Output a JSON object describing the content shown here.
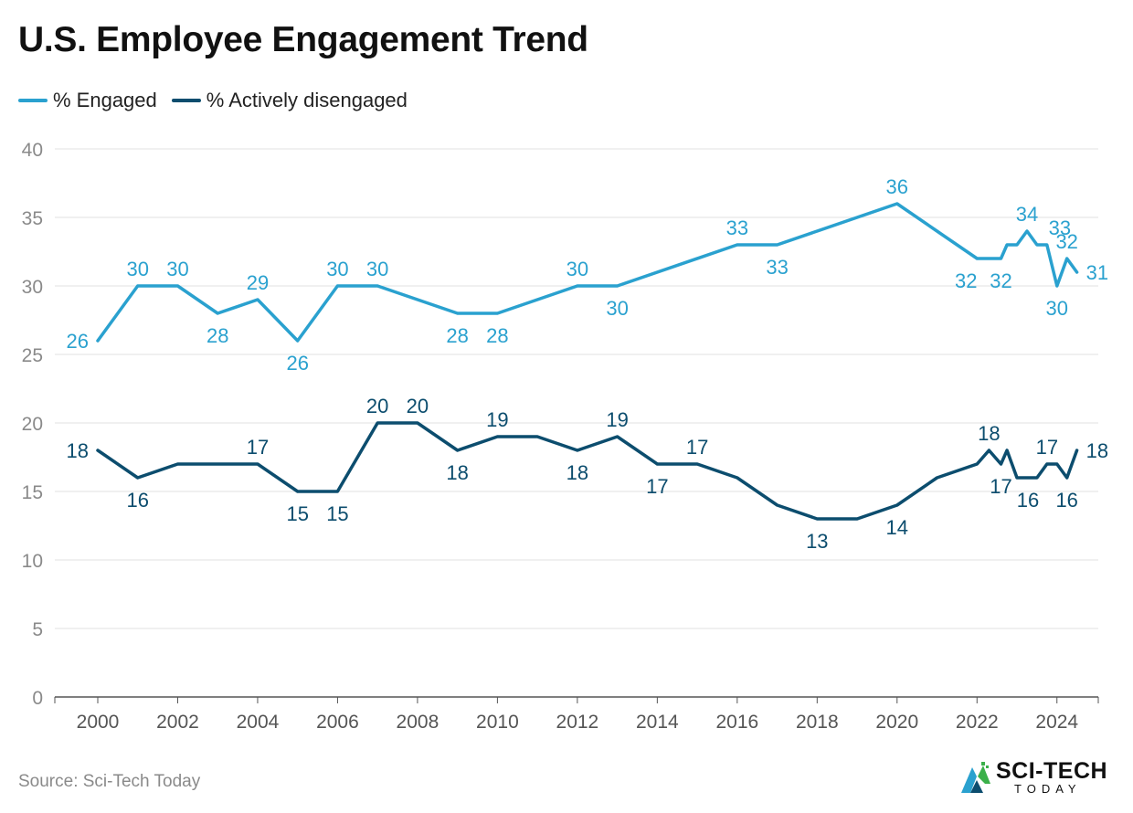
{
  "title": "U.S. Employee Engagement Trend",
  "source": "Source: Sci-Tech Today",
  "logo": {
    "main": "SCI-TECH",
    "sub": "TODAY"
  },
  "colors": {
    "engaged": "#2aa1cf",
    "disengaged": "#0c4d6e",
    "grid": "#e2e2e2",
    "tick": "#8a8a8a"
  },
  "chart_data": {
    "type": "line",
    "title": "U.S. Employee Engagement Trend",
    "xlabel": "",
    "ylabel": "",
    "xlim": [
      2000,
      2024.6
    ],
    "ylim": [
      0,
      40
    ],
    "yticks": [
      0,
      5,
      10,
      15,
      20,
      25,
      30,
      35,
      40
    ],
    "xticks": [
      2000,
      2002,
      2004,
      2006,
      2008,
      2010,
      2012,
      2014,
      2016,
      2018,
      2020,
      2022,
      2024
    ],
    "grid": true,
    "legend": "top-left",
    "series": [
      {
        "name": "% Engaged",
        "color": "#2aa1cf",
        "points": [
          {
            "x": 2000,
            "y": 26,
            "label": "26",
            "pos": "left"
          },
          {
            "x": 2001,
            "y": 30,
            "label": "30",
            "pos": "above"
          },
          {
            "x": 2002,
            "y": 30,
            "label": "30",
            "pos": "above"
          },
          {
            "x": 2003,
            "y": 28,
            "label": "28",
            "pos": "below"
          },
          {
            "x": 2004,
            "y": 29,
            "label": "29",
            "pos": "above"
          },
          {
            "x": 2005,
            "y": 26,
            "label": "26",
            "pos": "below"
          },
          {
            "x": 2006,
            "y": 30,
            "label": "30",
            "pos": "above"
          },
          {
            "x": 2007,
            "y": 30,
            "label": "30",
            "pos": "above"
          },
          {
            "x": 2009,
            "y": 28,
            "label": "28",
            "pos": "below"
          },
          {
            "x": 2010,
            "y": 28,
            "label": "28",
            "pos": "below"
          },
          {
            "x": 2012,
            "y": 30,
            "label": "30",
            "pos": "above"
          },
          {
            "x": 2013,
            "y": 30,
            "label": "30",
            "pos": "below"
          },
          {
            "x": 2016,
            "y": 33,
            "label": "33",
            "pos": "above"
          },
          {
            "x": 2017,
            "y": 33,
            "label": "33",
            "pos": "below"
          },
          {
            "x": 2020,
            "y": 36,
            "label": "36",
            "pos": "above"
          },
          {
            "x": 2021,
            "y": 34,
            "label": "",
            "pos": "none"
          },
          {
            "x": 2022,
            "y": 32,
            "label": "32",
            "pos": "below-left"
          },
          {
            "x": 2022.6,
            "y": 32,
            "label": "32",
            "pos": "below"
          },
          {
            "x": 2022.75,
            "y": 33,
            "label": "",
            "pos": "none"
          },
          {
            "x": 2023,
            "y": 33,
            "label": "",
            "pos": "none"
          },
          {
            "x": 2023.25,
            "y": 34,
            "label": "34",
            "pos": "above"
          },
          {
            "x": 2023.5,
            "y": 33,
            "label": "",
            "pos": "none"
          },
          {
            "x": 2023.75,
            "y": 33,
            "label": "33",
            "pos": "above-right"
          },
          {
            "x": 2024,
            "y": 30,
            "label": "30",
            "pos": "below"
          },
          {
            "x": 2024.25,
            "y": 32,
            "label": "32",
            "pos": "above"
          },
          {
            "x": 2024.5,
            "y": 31,
            "label": "31",
            "pos": "right"
          }
        ]
      },
      {
        "name": "% Actively disengaged",
        "color": "#0c4d6e",
        "points": [
          {
            "x": 2000,
            "y": 18,
            "label": "18",
            "pos": "left"
          },
          {
            "x": 2001,
            "y": 16,
            "label": "16",
            "pos": "below"
          },
          {
            "x": 2002,
            "y": 17,
            "label": "",
            "pos": "none"
          },
          {
            "x": 2004,
            "y": 17,
            "label": "17",
            "pos": "above"
          },
          {
            "x": 2005,
            "y": 15,
            "label": "15",
            "pos": "below"
          },
          {
            "x": 2006,
            "y": 15,
            "label": "15",
            "pos": "below"
          },
          {
            "x": 2007,
            "y": 20,
            "label": "20",
            "pos": "above"
          },
          {
            "x": 2008,
            "y": 20,
            "label": "20",
            "pos": "above"
          },
          {
            "x": 2009,
            "y": 18,
            "label": "18",
            "pos": "below"
          },
          {
            "x": 2010,
            "y": 19,
            "label": "19",
            "pos": "above"
          },
          {
            "x": 2011,
            "y": 19,
            "label": "",
            "pos": "none"
          },
          {
            "x": 2012,
            "y": 18,
            "label": "18",
            "pos": "below"
          },
          {
            "x": 2013,
            "y": 19,
            "label": "19",
            "pos": "above"
          },
          {
            "x": 2014,
            "y": 17,
            "label": "17",
            "pos": "below"
          },
          {
            "x": 2015,
            "y": 17,
            "label": "17",
            "pos": "above"
          },
          {
            "x": 2016,
            "y": 16,
            "label": "",
            "pos": "none"
          },
          {
            "x": 2017,
            "y": 14,
            "label": "",
            "pos": "none"
          },
          {
            "x": 2018,
            "y": 13,
            "label": "13",
            "pos": "below"
          },
          {
            "x": 2019,
            "y": 13,
            "label": "",
            "pos": "none"
          },
          {
            "x": 2020,
            "y": 14,
            "label": "14",
            "pos": "below"
          },
          {
            "x": 2021,
            "y": 16,
            "label": "",
            "pos": "none"
          },
          {
            "x": 2022,
            "y": 17,
            "label": "",
            "pos": "none"
          },
          {
            "x": 2022.3,
            "y": 18,
            "label": "18",
            "pos": "above"
          },
          {
            "x": 2022.6,
            "y": 17,
            "label": "17",
            "pos": "below"
          },
          {
            "x": 2022.75,
            "y": 18,
            "label": "",
            "pos": "none"
          },
          {
            "x": 2023,
            "y": 16,
            "label": "16",
            "pos": "below-right"
          },
          {
            "x": 2023.5,
            "y": 16,
            "label": "",
            "pos": "none"
          },
          {
            "x": 2023.75,
            "y": 17,
            "label": "17",
            "pos": "above"
          },
          {
            "x": 2024,
            "y": 17,
            "label": "",
            "pos": "none"
          },
          {
            "x": 2024.25,
            "y": 16,
            "label": "16",
            "pos": "below"
          },
          {
            "x": 2024.5,
            "y": 18,
            "label": "18",
            "pos": "right"
          }
        ]
      }
    ]
  }
}
